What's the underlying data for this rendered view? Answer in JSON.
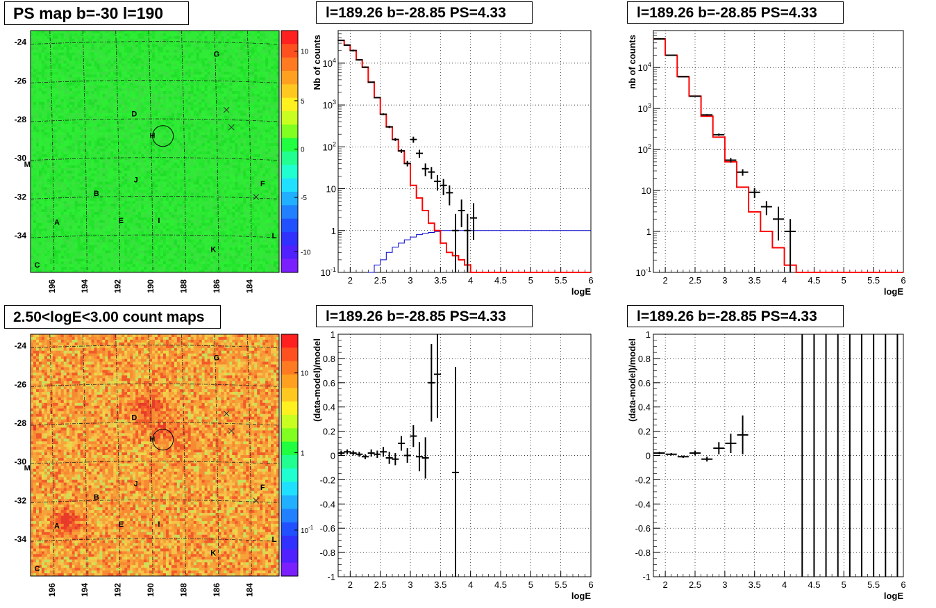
{
  "titles": {
    "ps_map": "PS map b=-30 l=190",
    "spectrum": "l=189.26 b=-28.85 PS=4.33",
    "spectrum_rebinned": "l=189.26 b=-28.85 PS=4.33",
    "count_map": "2.50<logE<3.00 count maps",
    "residual": "l=189.26 b=-28.85 PS=4.33",
    "residual_rebinned": "l=189.26 b=-28.85 PS=4.33"
  },
  "colors": {
    "data": "#000000",
    "model": "#ff0000",
    "efficiency": "#0000cc",
    "grid": "#000000"
  },
  "chart_data": [
    {
      "id": "ps_map",
      "type": "heatmap",
      "title": "PS map b=-30 l=190",
      "x_ticks": [
        "196",
        "194",
        "192",
        "190",
        "188",
        "186",
        "184"
      ],
      "y_ticks": [
        "-24",
        "-26",
        "-28",
        "-30",
        "-32",
        "-34"
      ],
      "colorbar_ticks": [
        "10",
        "5",
        "0",
        "-5",
        "-10"
      ],
      "sources": [
        {
          "label": "G",
          "l": 186.0,
          "b": -24.6
        },
        {
          "label": "D",
          "l": 191.0,
          "b": -27.7
        },
        {
          "label": "H",
          "l": 189.9,
          "b": -28.8
        },
        {
          "label": "M",
          "l": 197.5,
          "b": -30.3
        },
        {
          "label": "J",
          "l": 190.9,
          "b": -31.1
        },
        {
          "label": "B",
          "l": 193.3,
          "b": -31.8
        },
        {
          "label": "F",
          "l": 183.2,
          "b": -31.3
        },
        {
          "label": "A",
          "l": 195.7,
          "b": -33.3
        },
        {
          "label": "E",
          "l": 191.8,
          "b": -33.2
        },
        {
          "label": "I",
          "l": 189.5,
          "b": -33.2
        },
        {
          "label": "L",
          "l": 182.5,
          "b": -34.0
        },
        {
          "label": "K",
          "l": 186.2,
          "b": -34.7
        },
        {
          "label": "C",
          "l": 196.9,
          "b": -35.5
        }
      ],
      "crosses": [
        {
          "l": 185.4,
          "b": -27.5
        },
        {
          "l": 185.1,
          "b": -28.4
        },
        {
          "l": 183.6,
          "b": -32.0
        }
      ],
      "circle": {
        "l": 189.26,
        "b": -28.85
      }
    },
    {
      "id": "spectrum",
      "type": "line",
      "title": "l=189.26 b=-28.85 PS=4.33",
      "xlabel": "logE",
      "ylabel": "Nb of counts",
      "xlim": [
        1.8,
        6.0
      ],
      "ylim": [
        0.1,
        60000
      ],
      "yscale": "log",
      "x_ticks": [
        "2",
        "2.5",
        "3",
        "3.5",
        "4",
        "4.5",
        "5",
        "5.5",
        "6"
      ],
      "y_ticks": [
        "10^4",
        "10^3",
        "10^2",
        "10",
        "1",
        "10^-1"
      ],
      "model_edges": [
        1.8,
        1.9,
        2.0,
        2.1,
        2.2,
        2.3,
        2.4,
        2.5,
        2.6,
        2.7,
        2.8,
        2.9,
        3.0,
        3.1,
        3.2,
        3.3,
        3.4,
        3.5,
        3.6,
        3.7,
        3.8,
        3.9,
        4.0,
        4.1,
        6.0
      ],
      "model_values": [
        35000,
        27000,
        20000,
        12000,
        8000,
        3500,
        1500,
        600,
        300,
        150,
        80,
        40,
        12,
        6,
        3,
        1.5,
        1,
        0.5,
        0.3,
        0.25,
        0.2,
        0.15,
        0.1,
        0.1
      ],
      "efficiency_edges": [
        2.3,
        2.4,
        2.5,
        2.6,
        2.7,
        2.8,
        2.9,
        3.0,
        3.1,
        3.2,
        3.3,
        3.4,
        3.5,
        3.6,
        6.0
      ],
      "efficiency_values": [
        0.1,
        0.15,
        0.2,
        0.3,
        0.4,
        0.5,
        0.6,
        0.7,
        0.8,
        0.85,
        0.9,
        0.95,
        1.0,
        1.0
      ],
      "data_x": [
        1.85,
        1.95,
        2.05,
        2.15,
        2.25,
        2.35,
        2.45,
        2.55,
        2.65,
        2.75,
        2.85,
        2.95,
        3.05,
        3.15,
        3.25,
        3.35,
        3.45,
        3.55,
        3.65,
        3.75,
        3.85,
        3.95,
        4.05
      ],
      "data_y": [
        35000,
        27000,
        20000,
        12000,
        8000,
        3500,
        1500,
        600,
        300,
        150,
        80,
        40,
        150,
        70,
        30,
        25,
        15,
        12,
        8,
        1,
        3,
        1,
        2
      ],
      "data_err_low": [
        34000,
        26000,
        19000,
        11500,
        7700,
        3400,
        1450,
        570,
        280,
        138,
        72,
        34,
        125,
        55,
        20,
        17,
        9,
        7,
        4,
        0.1,
        1.2,
        0.1,
        0.6
      ],
      "data_err_high": [
        36000,
        28000,
        21000,
        12500,
        8300,
        3600,
        1550,
        630,
        320,
        162,
        88,
        46,
        175,
        85,
        40,
        33,
        21,
        17,
        12,
        2.5,
        5.5,
        2.5,
        4.5
      ]
    },
    {
      "id": "spectrum_rebinned",
      "type": "line",
      "title": "l=189.26 b=-28.85 PS=4.33",
      "xlabel": "logE",
      "ylabel": "nb of counts",
      "xlim": [
        1.8,
        6.0
      ],
      "ylim": [
        0.1,
        80000
      ],
      "yscale": "log",
      "x_ticks": [
        "2",
        "2.5",
        "3",
        "3.5",
        "4",
        "4.5",
        "5",
        "5.5",
        "6"
      ],
      "y_ticks": [
        "10^4",
        "10^3",
        "10^2",
        "10",
        "1",
        "10^-1"
      ],
      "model_edges": [
        1.8,
        2.0,
        2.2,
        2.4,
        2.6,
        2.8,
        3.0,
        3.2,
        3.4,
        3.6,
        3.8,
        4.0,
        4.2,
        4.4,
        6.0
      ],
      "model_values": [
        50000,
        20000,
        6000,
        2000,
        650,
        200,
        50,
        12,
        3,
        1,
        0.4,
        0.15,
        0.1,
        0.1
      ],
      "data_x": [
        1.9,
        2.1,
        2.3,
        2.5,
        2.7,
        2.9,
        3.1,
        3.3,
        3.5,
        3.7,
        3.9,
        4.1
      ],
      "data_y": [
        50000,
        20000,
        6000,
        2000,
        700,
        230,
        55,
        28,
        9,
        4,
        2,
        1
      ],
      "data_err_low": [
        49000,
        19500,
        5800,
        1950,
        670,
        215,
        48,
        23,
        6.5,
        2.5,
        0.6,
        0.1
      ],
      "data_err_high": [
        51000,
        20500,
        6200,
        2050,
        730,
        245,
        62,
        33,
        11.5,
        5.5,
        4,
        2
      ]
    },
    {
      "id": "count_map",
      "type": "heatmap",
      "title": "2.50<logE<3.00 count maps",
      "x_ticks": [
        "196",
        "194",
        "192",
        "190",
        "188",
        "186",
        "184"
      ],
      "y_ticks": [
        "-24",
        "-26",
        "-28",
        "-30",
        "-32",
        "-34"
      ],
      "colorbar_ticks": [
        "10",
        "1",
        "10^-1"
      ],
      "sources": [
        {
          "label": "G",
          "l": 186.0,
          "b": -24.6
        },
        {
          "label": "D",
          "l": 191.0,
          "b": -27.7
        },
        {
          "label": "H",
          "l": 189.9,
          "b": -28.8
        },
        {
          "label": "M",
          "l": 197.5,
          "b": -30.3
        },
        {
          "label": "J",
          "l": 190.9,
          "b": -31.1
        },
        {
          "label": "B",
          "l": 193.3,
          "b": -31.8
        },
        {
          "label": "F",
          "l": 183.2,
          "b": -31.3
        },
        {
          "label": "A",
          "l": 195.7,
          "b": -33.3
        },
        {
          "label": "E",
          "l": 191.8,
          "b": -33.2
        },
        {
          "label": "I",
          "l": 189.5,
          "b": -33.2
        },
        {
          "label": "L",
          "l": 182.5,
          "b": -34.0
        },
        {
          "label": "K",
          "l": 186.2,
          "b": -34.7
        },
        {
          "label": "C",
          "l": 196.9,
          "b": -35.5
        }
      ],
      "crosses": [
        {
          "l": 185.4,
          "b": -27.5
        },
        {
          "l": 185.1,
          "b": -28.4
        },
        {
          "l": 183.6,
          "b": -32.0
        }
      ],
      "circle": {
        "l": 189.26,
        "b": -28.85
      }
    },
    {
      "id": "residual",
      "type": "scatter",
      "title": "l=189.26 b=-28.85 PS=4.33",
      "xlabel": "logE",
      "ylabel": "(data-model)/model",
      "xlim": [
        1.8,
        6.0
      ],
      "ylim": [
        -1,
        1
      ],
      "x_ticks": [
        "2",
        "2.5",
        "3",
        "3.5",
        "4",
        "4.5",
        "5",
        "5.5",
        "6"
      ],
      "y_ticks": [
        "1",
        "0.8",
        "0.6",
        "0.4",
        "0.2",
        "0",
        "-0.2",
        "-0.4",
        "-0.6",
        "-0.8",
        "-1"
      ],
      "data_x": [
        1.85,
        1.95,
        2.05,
        2.15,
        2.25,
        2.35,
        2.45,
        2.55,
        2.65,
        2.75,
        2.85,
        2.95,
        3.05,
        3.15,
        3.25,
        3.35,
        3.45,
        3.75
      ],
      "data_y": [
        0.02,
        0.03,
        0.02,
        0.01,
        -0.01,
        0.02,
        0.01,
        0.03,
        -0.02,
        -0.03,
        0.1,
        0.0,
        0.16,
        -0.01,
        -0.02,
        0.6,
        0.67,
        -0.14
      ],
      "data_err": [
        0.02,
        0.02,
        0.02,
        0.02,
        0.02,
        0.03,
        0.03,
        0.04,
        0.05,
        0.05,
        0.06,
        0.06,
        0.09,
        0.12,
        0.17,
        0.32,
        0.36,
        0.87
      ]
    },
    {
      "id": "residual_rebinned",
      "type": "scatter",
      "title": "l=189.26 b=-28.85 PS=4.33",
      "xlabel": "logE",
      "ylabel": "(data-model)/model",
      "xlim": [
        1.8,
        6.0
      ],
      "ylim": [
        -1,
        1
      ],
      "x_ticks": [
        "2",
        "2.5",
        "3",
        "3.5",
        "4",
        "4.5",
        "5",
        "5.5",
        "6"
      ],
      "y_ticks": [
        "1",
        "0.8",
        "0.6",
        "0.4",
        "0.2",
        "0",
        "-0.2",
        "-0.4",
        "-0.6",
        "-0.8",
        "-1"
      ],
      "data_x": [
        1.9,
        2.1,
        2.3,
        2.5,
        2.7,
        2.9,
        3.1,
        3.3
      ],
      "data_y": [
        0.02,
        0.01,
        -0.01,
        0.02,
        -0.03,
        0.06,
        0.1,
        0.17
      ],
      "data_err": [
        0.01,
        0.01,
        0.01,
        0.02,
        0.02,
        0.05,
        0.08,
        0.16
      ],
      "vertical_lines_x": [
        4.3,
        4.5,
        4.7,
        4.9,
        5.1,
        5.3,
        5.5,
        5.7,
        5.9
      ]
    }
  ]
}
